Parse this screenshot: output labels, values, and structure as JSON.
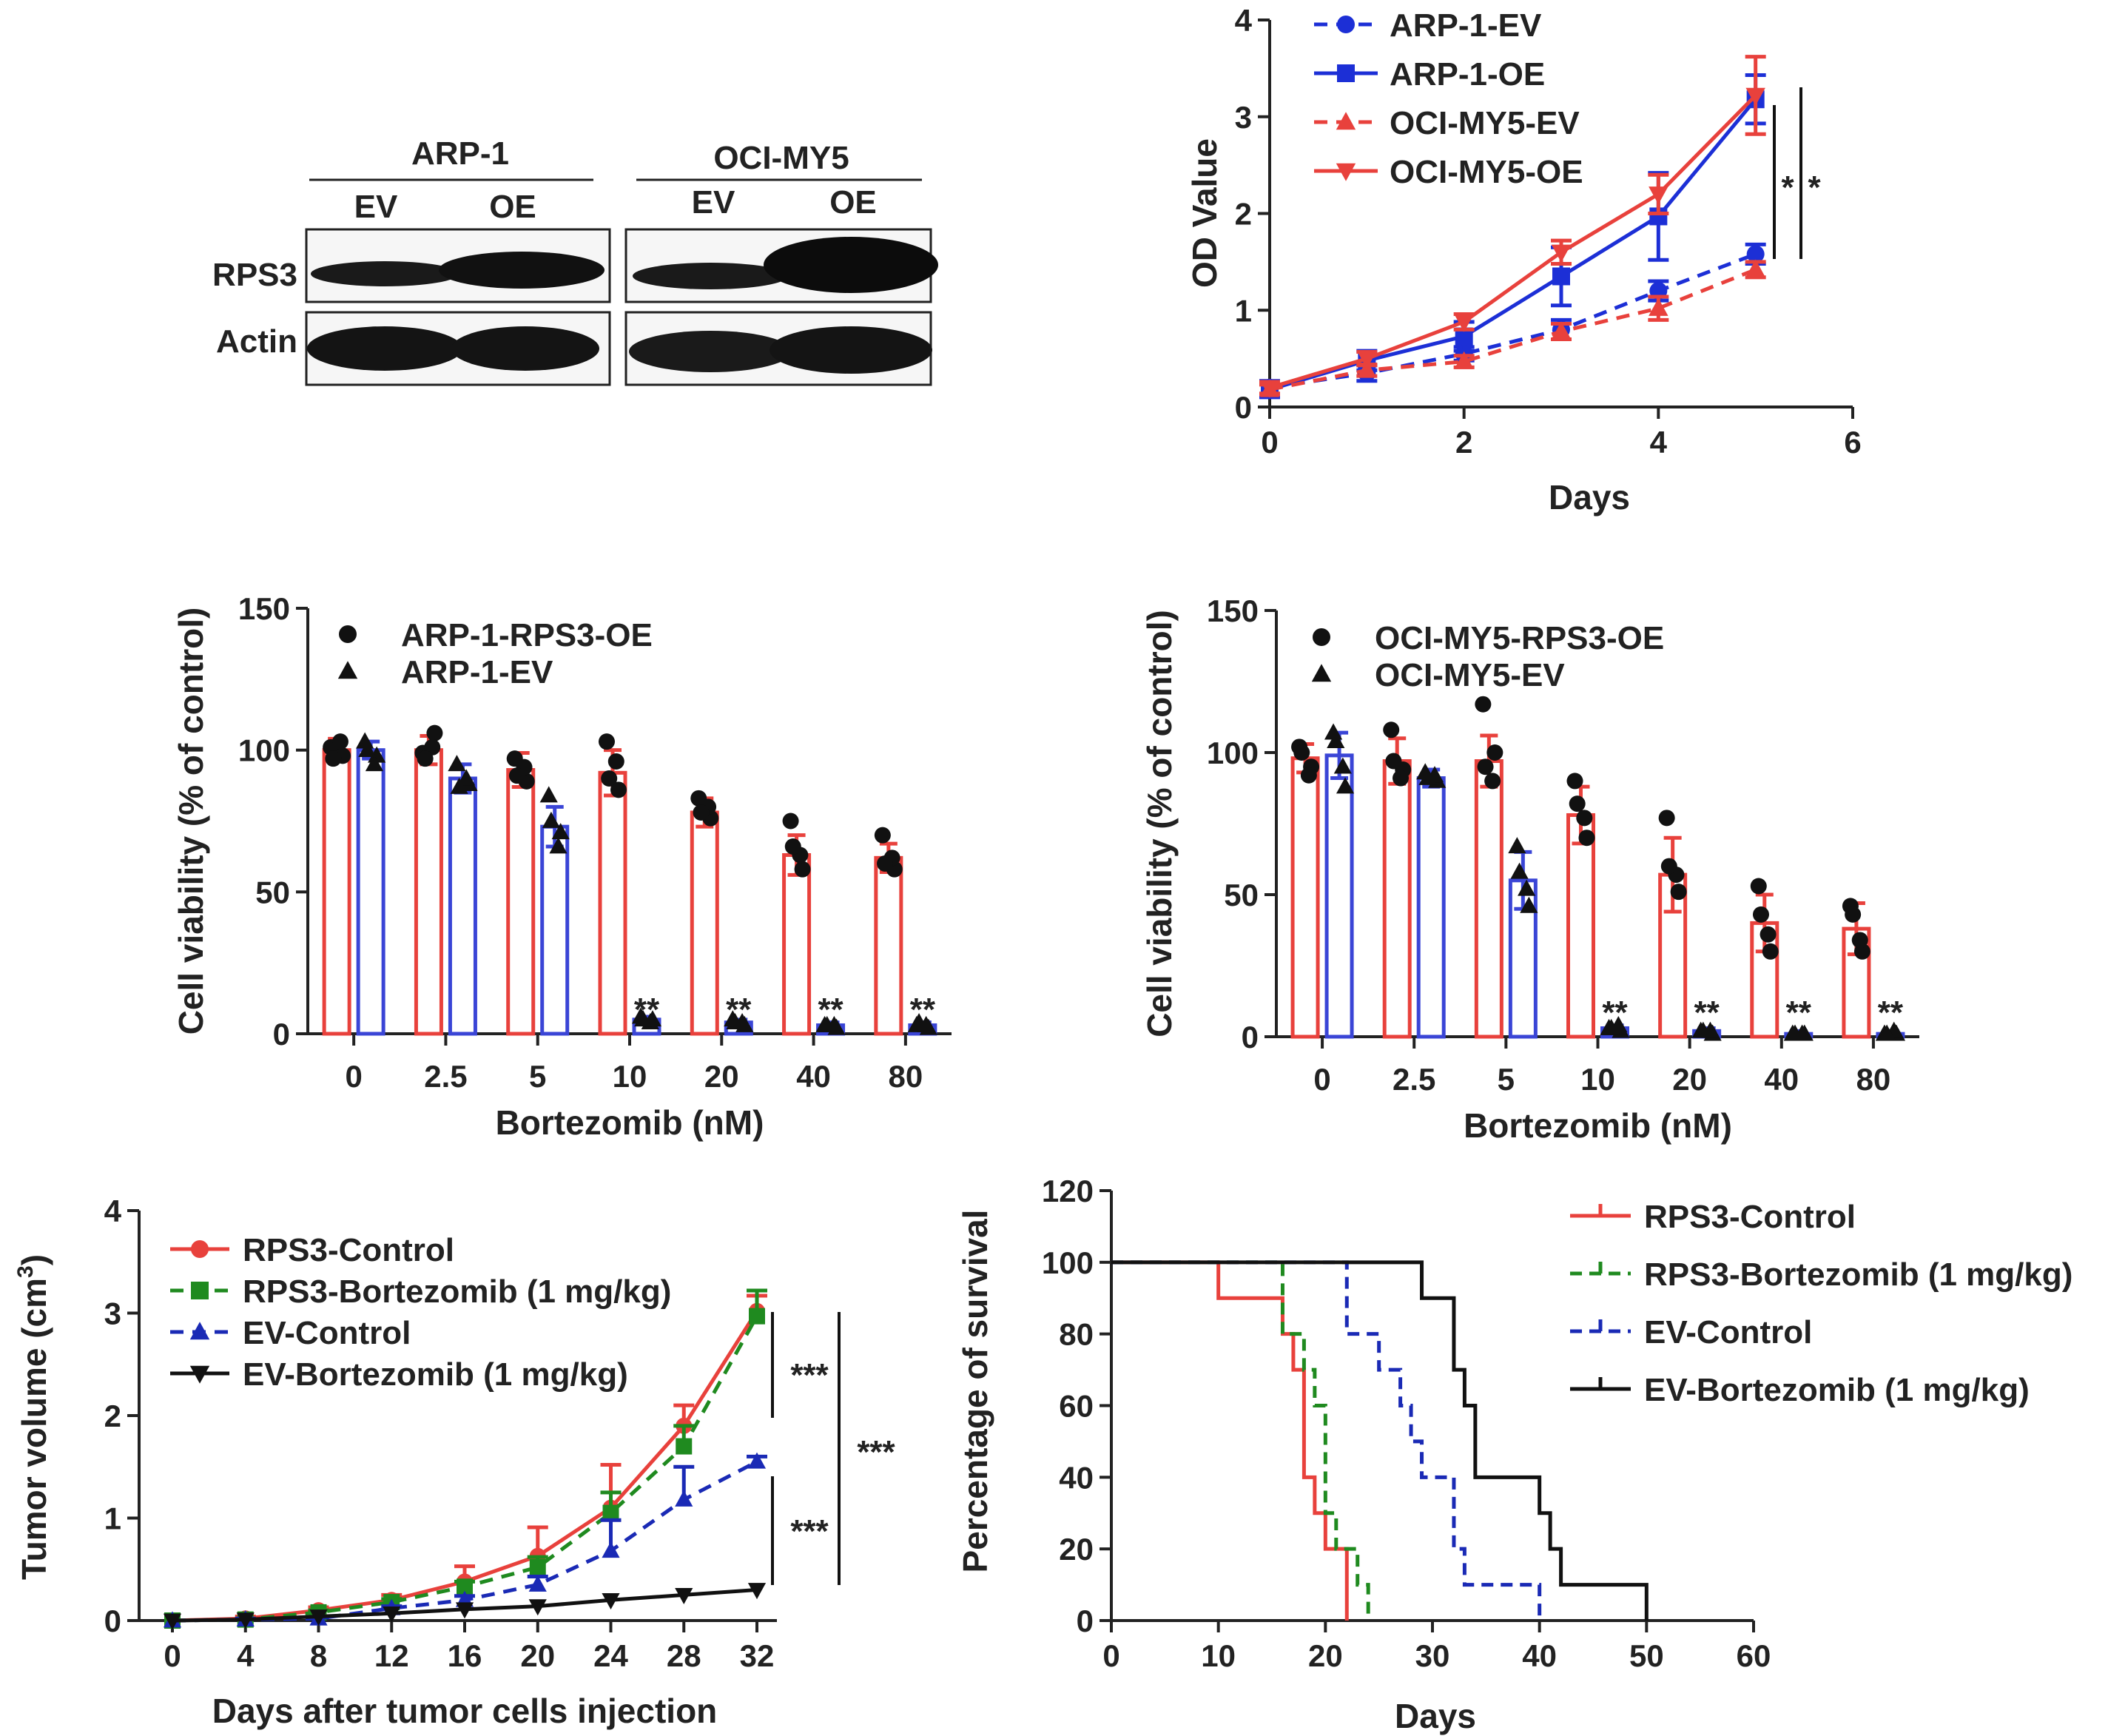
{
  "colors": {
    "red": "#e8413c",
    "blue": "#1c2fd6",
    "green": "#1f8a1f",
    "navy": "#1a2ab5",
    "black": "#111111"
  },
  "western_blot": {
    "groups": [
      {
        "name": "ARP-1",
        "lanes": [
          "EV",
          "OE"
        ]
      },
      {
        "name": "OCI-MY5",
        "lanes": [
          "EV",
          "OE"
        ]
      }
    ],
    "rows": [
      "RPS3",
      "Actin"
    ]
  },
  "chart_data": [
    {
      "id": "od",
      "type": "line",
      "xlabel": "Days",
      "ylabel": "OD Value",
      "xlim": [
        0,
        6
      ],
      "ylim": [
        0,
        4
      ],
      "xticks": [
        0,
        2,
        4,
        6
      ],
      "yticks": [
        0,
        1,
        2,
        3,
        4
      ],
      "x": [
        0,
        1,
        2,
        3,
        4,
        5
      ],
      "legend_position": "top-left",
      "series": [
        {
          "name": "ARP-1-EV",
          "color": "#1c2fd6",
          "dashed": true,
          "marker": "circle",
          "values": [
            0.2,
            0.35,
            0.55,
            0.8,
            1.2,
            1.58
          ],
          "errors": [
            0.07,
            0.08,
            0.07,
            0.1,
            0.1,
            0.1
          ]
        },
        {
          "name": "ARP-1-OE",
          "color": "#1c2fd6",
          "dashed": false,
          "marker": "square",
          "values": [
            0.18,
            0.48,
            0.73,
            1.35,
            1.97,
            3.18
          ],
          "errors": [
            0.08,
            0.1,
            0.15,
            0.3,
            0.45,
            0.25
          ]
        },
        {
          "name": "OCI-MY5-EV",
          "color": "#e8413c",
          "dashed": true,
          "marker": "triangle-up",
          "values": [
            0.18,
            0.38,
            0.47,
            0.78,
            1.02,
            1.42
          ],
          "errors": [
            0.05,
            0.06,
            0.06,
            0.08,
            0.12,
            0.08
          ]
        },
        {
          "name": "OCI-MY5-OE",
          "color": "#e8413c",
          "dashed": false,
          "marker": "triangle-down",
          "values": [
            0.2,
            0.5,
            0.88,
            1.6,
            2.2,
            3.22
          ],
          "errors": [
            0.06,
            0.07,
            0.08,
            0.12,
            0.2,
            0.4
          ]
        }
      ],
      "annotations": [
        "*",
        "*"
      ]
    },
    {
      "id": "arp",
      "type": "bar",
      "xlabel": "Bortezomib (nM)",
      "ylabel": "Cell viability (% of control)",
      "categories": [
        "0",
        "2.5",
        "5",
        "10",
        "20",
        "40",
        "80"
      ],
      "ylim": [
        0,
        150
      ],
      "yticks": [
        0,
        50,
        100,
        150
      ],
      "legend_position": "top-left",
      "series": [
        {
          "name": "ARP-1-RPS3-OE",
          "color": "#e8413c",
          "marker": "circle",
          "values": [
            100,
            100,
            93,
            92,
            78,
            63,
            62
          ],
          "errors": [
            4,
            5,
            6,
            8,
            5,
            7,
            5
          ],
          "points": [
            [
              101,
              98,
              103,
              97
            ],
            [
              99,
              106,
              101,
              97
            ],
            [
              97,
              89,
              94,
              91
            ],
            [
              103,
              86,
              96,
              90
            ],
            [
              83,
              76,
              80,
              78
            ],
            [
              75,
              58,
              63,
              66
            ],
            [
              70,
              58,
              62,
              60
            ]
          ]
        },
        {
          "name": "ARP-1-EV",
          "color": "#3a45d6",
          "marker": "triangle",
          "values": [
            100,
            90,
            73,
            5,
            4,
            3,
            3
          ],
          "errors": [
            3,
            5,
            7,
            1,
            1,
            1,
            1
          ],
          "points": [
            [
              103,
              98,
              95,
              100
            ],
            [
              95,
              88,
              90,
              87
            ],
            [
              84,
              71,
              66,
              75
            ],
            [
              6,
              5,
              4,
              5
            ],
            [
              5,
              3,
              4,
              4
            ],
            [
              3,
              2,
              3,
              3
            ],
            [
              3,
              2,
              3,
              4
            ]
          ]
        }
      ],
      "annotations": [
        "**",
        "**",
        "**",
        "**"
      ]
    },
    {
      "id": "oci",
      "type": "bar",
      "xlabel": "Bortezomib (nM)",
      "ylabel": "Cell viability (% of control)",
      "categories": [
        "0",
        "2.5",
        "5",
        "10",
        "20",
        "40",
        "80"
      ],
      "ylim": [
        0,
        150
      ],
      "yticks": [
        0,
        50,
        100,
        150
      ],
      "legend_position": "top-left",
      "series": [
        {
          "name": "OCI-MY5-RPS3-OE",
          "color": "#e8413c",
          "marker": "circle",
          "values": [
            98,
            97,
            97,
            78,
            57,
            40,
            38
          ],
          "errors": [
            5,
            8,
            9,
            10,
            13,
            10,
            9
          ],
          "points": [
            [
              102,
              95,
              92,
              100
            ],
            [
              108,
              94,
              91,
              97
            ],
            [
              117,
              100,
              90,
              95
            ],
            [
              90,
              70,
              77,
              82
            ],
            [
              77,
              51,
              57,
              60
            ],
            [
              53,
              30,
              36,
              43
            ],
            [
              46,
              30,
              34,
              43
            ]
          ]
        },
        {
          "name": "OCI-MY5-EV",
          "color": "#3a45d6",
          "marker": "triangle",
          "values": [
            99,
            91,
            55,
            3,
            2,
            1,
            1
          ],
          "errors": [
            8,
            3,
            10,
            1,
            1,
            1,
            1
          ],
          "points": [
            [
              107,
              88,
              95,
              104
            ],
            [
              93,
              90,
              92,
              91
            ],
            [
              67,
              46,
              52,
              58
            ],
            [
              3,
              2,
              4,
              3
            ],
            [
              2,
              1,
              2,
              2
            ],
            [
              1,
              1,
              1,
              1
            ],
            [
              1,
              1,
              2,
              1
            ]
          ]
        }
      ],
      "annotations": [
        "**",
        "**",
        "**",
        "**"
      ]
    },
    {
      "id": "tumor",
      "type": "line",
      "xlabel": "Days after tumor cells injection",
      "ylabel_main": "Tumor volume (cm",
      "ylabel_sup": "3",
      "ylabel_end": ")",
      "xlim": [
        0,
        32
      ],
      "ylim": [
        0,
        4
      ],
      "xticks": [
        0,
        4,
        8,
        12,
        16,
        20,
        24,
        28,
        32
      ],
      "yticks": [
        0,
        1,
        2,
        3,
        4
      ],
      "x": [
        0,
        4,
        8,
        12,
        16,
        20,
        24,
        28,
        32
      ],
      "legend_position": "top-left",
      "series": [
        {
          "name": "RPS3-Control",
          "color": "#e8413c",
          "dashed": false,
          "marker": "circle",
          "values": [
            0,
            0.02,
            0.1,
            0.2,
            0.38,
            0.63,
            1.1,
            1.9,
            3.02
          ],
          "errors": [
            0,
            0.02,
            0.03,
            0.05,
            0.15,
            0.28,
            0.42,
            0.2,
            0.15
          ]
        },
        {
          "name": "RPS3-Bortezomib (1 mg/kg)",
          "color": "#1f8a1f",
          "dashed": true,
          "marker": "square",
          "values": [
            0,
            0.01,
            0.08,
            0.18,
            0.33,
            0.52,
            1.05,
            1.7,
            2.97
          ],
          "errors": [
            0,
            0.01,
            0.02,
            0.03,
            0.05,
            0.1,
            0.2,
            0.2,
            0.25
          ]
        },
        {
          "name": "EV-Control",
          "color": "#1a2ab5",
          "dashed": true,
          "marker": "triangle-up",
          "values": [
            0,
            0.01,
            0.02,
            0.12,
            0.2,
            0.35,
            0.68,
            1.18,
            1.55
          ],
          "errors": [
            0,
            0.01,
            0.01,
            0.02,
            0.04,
            0.08,
            0.3,
            0.32,
            0.05
          ]
        },
        {
          "name": "EV-Bortezomib (1 mg/kg)",
          "color": "#111111",
          "dashed": false,
          "marker": "triangle-down",
          "values": [
            0,
            0.01,
            0.04,
            0.07,
            0.11,
            0.14,
            0.2,
            0.25,
            0.3
          ],
          "errors": [
            0,
            0,
            0,
            0,
            0,
            0,
            0,
            0,
            0
          ]
        }
      ],
      "annotations": [
        "***",
        "***",
        "***"
      ]
    },
    {
      "id": "survival",
      "type": "line",
      "xlabel": "Days",
      "ylabel": "Percentage of survival",
      "xlim": [
        0,
        60
      ],
      "ylim": [
        0,
        120
      ],
      "xticks": [
        0,
        10,
        20,
        30,
        40,
        50,
        60
      ],
      "yticks": [
        0,
        20,
        40,
        60,
        80,
        100,
        120
      ],
      "legend_position": "top-right",
      "series": [
        {
          "name": "RPS3-Control",
          "color": "#e8413c",
          "dashed": false,
          "steps": [
            [
              0,
              100
            ],
            [
              10,
              90
            ],
            [
              16,
              80
            ],
            [
              17,
              70
            ],
            [
              18,
              40
            ],
            [
              19,
              30
            ],
            [
              20,
              20
            ],
            [
              22,
              0
            ]
          ]
        },
        {
          "name": "RPS3-Bortezomib (1 mg/kg)",
          "color": "#1f8a1f",
          "dashed": true,
          "steps": [
            [
              0,
              100
            ],
            [
              16,
              80
            ],
            [
              18,
              70
            ],
            [
              19,
              60
            ],
            [
              20,
              30
            ],
            [
              21,
              20
            ],
            [
              23,
              10
            ],
            [
              24,
              0
            ]
          ]
        },
        {
          "name": "EV-Control",
          "color": "#1a2ab5",
          "dashed": true,
          "steps": [
            [
              0,
              100
            ],
            [
              22,
              80
            ],
            [
              25,
              70
            ],
            [
              27,
              60
            ],
            [
              28,
              50
            ],
            [
              29,
              40
            ],
            [
              32,
              20
            ],
            [
              33,
              10
            ],
            [
              40,
              0
            ]
          ]
        },
        {
          "name": "EV-Bortezomib (1 mg/kg)",
          "color": "#111111",
          "dashed": false,
          "steps": [
            [
              0,
              100
            ],
            [
              29,
              90
            ],
            [
              32,
              70
            ],
            [
              33,
              60
            ],
            [
              34,
              40
            ],
            [
              40,
              30
            ],
            [
              41,
              20
            ],
            [
              42,
              10
            ],
            [
              50,
              0
            ]
          ]
        }
      ]
    }
  ]
}
